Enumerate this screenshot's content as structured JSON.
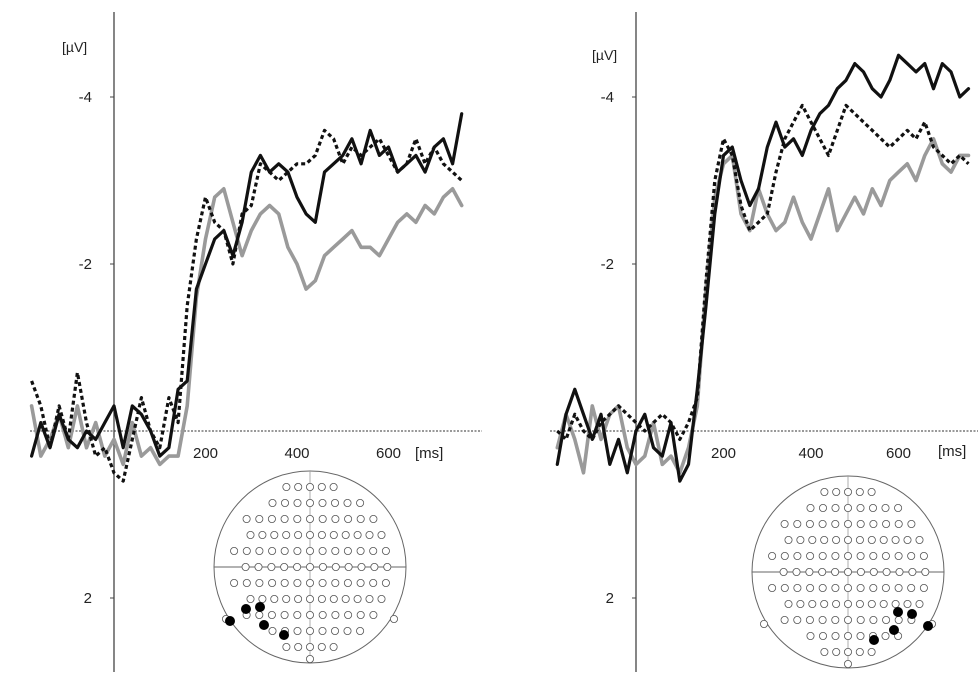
{
  "chart_data": [
    {
      "type": "line",
      "ylabel": "[µV]",
      "xlabel_unit": "[ms]",
      "x_ticks": [
        200,
        400,
        600
      ],
      "y_ticks": [
        -4,
        -2,
        2
      ],
      "xlim": [
        -180,
        780
      ],
      "ylim": [
        -5,
        3
      ],
      "y_inverted": true,
      "series": [
        {
          "style": "solid-black",
          "x": [
            -180,
            -160,
            -140,
            -120,
            -100,
            -80,
            -60,
            -40,
            -20,
            0,
            20,
            40,
            60,
            80,
            100,
            120,
            140,
            160,
            180,
            200,
            220,
            240,
            260,
            280,
            300,
            320,
            340,
            360,
            380,
            400,
            420,
            440,
            460,
            480,
            500,
            520,
            540,
            560,
            580,
            600,
            620,
            640,
            660,
            680,
            700,
            720,
            740,
            760
          ],
          "y": [
            0.3,
            -0.1,
            0.2,
            -0.2,
            0.1,
            0.2,
            0.0,
            0.1,
            -0.1,
            -0.3,
            0.2,
            -0.3,
            -0.2,
            0.0,
            0.3,
            0.2,
            -0.5,
            -0.6,
            -1.7,
            -2.0,
            -2.3,
            -2.4,
            -2.1,
            -2.5,
            -3.1,
            -3.3,
            -3.1,
            -3.2,
            -3.1,
            -2.8,
            -2.6,
            -2.5,
            -3.1,
            -3.2,
            -3.3,
            -3.5,
            -3.2,
            -3.6,
            -3.3,
            -3.4,
            -3.1,
            -3.2,
            -3.3,
            -3.1,
            -3.4,
            -3.5,
            -3.2,
            -3.8
          ]
        },
        {
          "style": "dotted-black",
          "x": [
            -180,
            -160,
            -140,
            -120,
            -100,
            -80,
            -60,
            -40,
            -20,
            0,
            20,
            40,
            60,
            80,
            100,
            120,
            140,
            160,
            180,
            200,
            220,
            240,
            260,
            280,
            300,
            320,
            340,
            360,
            380,
            400,
            420,
            440,
            460,
            480,
            500,
            520,
            540,
            560,
            580,
            600,
            620,
            640,
            660,
            680,
            700,
            720,
            740,
            760
          ],
          "y": [
            -0.6,
            -0.3,
            0.2,
            -0.3,
            0.1,
            -0.7,
            -0.1,
            0.3,
            0.2,
            0.5,
            0.6,
            0.1,
            -0.4,
            0.0,
            0.2,
            -0.4,
            -0.1,
            -1.5,
            -2.3,
            -2.8,
            -2.5,
            -2.4,
            -2.0,
            -2.6,
            -2.7,
            -3.2,
            -3.1,
            -3.0,
            -3.1,
            -3.2,
            -3.2,
            -3.3,
            -3.6,
            -3.5,
            -3.2,
            -3.4,
            -3.3,
            -3.4,
            -3.5,
            -3.3,
            -3.1,
            -3.2,
            -3.5,
            -3.2,
            -3.4,
            -3.2,
            -3.1,
            -3.0
          ]
        },
        {
          "style": "solid-gray",
          "x": [
            -180,
            -160,
            -140,
            -120,
            -100,
            -80,
            -60,
            -40,
            -20,
            0,
            20,
            40,
            60,
            80,
            100,
            120,
            140,
            160,
            180,
            200,
            220,
            240,
            260,
            280,
            300,
            320,
            340,
            360,
            380,
            400,
            420,
            440,
            460,
            480,
            500,
            520,
            540,
            560,
            580,
            600,
            620,
            640,
            660,
            680,
            700,
            720,
            740,
            760
          ],
          "y": [
            -0.3,
            0.3,
            0.1,
            -0.2,
            0.2,
            -0.3,
            0.2,
            -0.1,
            0.3,
            0.1,
            0.4,
            -0.1,
            0.3,
            0.2,
            0.4,
            0.3,
            0.3,
            -0.3,
            -1.6,
            -2.3,
            -2.8,
            -2.9,
            -2.5,
            -2.1,
            -2.4,
            -2.6,
            -2.7,
            -2.6,
            -2.2,
            -2.0,
            -1.7,
            -1.8,
            -2.1,
            -2.2,
            -2.3,
            -2.4,
            -2.2,
            -2.2,
            -2.1,
            -2.3,
            -2.5,
            -2.6,
            -2.5,
            -2.7,
            -2.6,
            -2.8,
            -2.9,
            -2.7
          ]
        }
      ],
      "electrode_map": {
        "highlight": "left-posterior"
      }
    },
    {
      "type": "line",
      "ylabel": "[µV]",
      "xlabel_unit": "[ms]",
      "x_ticks": [
        200,
        400,
        600
      ],
      "y_ticks": [
        -4,
        -2,
        2
      ],
      "xlim": [
        -180,
        780
      ],
      "ylim": [
        -5,
        3
      ],
      "y_inverted": true,
      "series": [
        {
          "style": "solid-black",
          "x": [
            -180,
            -160,
            -140,
            -120,
            -100,
            -80,
            -60,
            -40,
            -20,
            0,
            20,
            40,
            60,
            80,
            100,
            120,
            140,
            160,
            180,
            200,
            220,
            240,
            260,
            280,
            300,
            320,
            340,
            360,
            380,
            400,
            420,
            440,
            460,
            480,
            500,
            520,
            540,
            560,
            580,
            600,
            620,
            640,
            660,
            680,
            700,
            720,
            740,
            760
          ],
          "y": [
            0.4,
            -0.2,
            -0.5,
            -0.2,
            0.1,
            -0.2,
            0.4,
            0.1,
            0.5,
            0.0,
            -0.2,
            0.2,
            0.3,
            -0.1,
            0.6,
            0.4,
            -0.5,
            -1.5,
            -2.6,
            -3.3,
            -3.4,
            -3.0,
            -2.7,
            -2.9,
            -3.4,
            -3.7,
            -3.4,
            -3.5,
            -3.3,
            -3.6,
            -3.8,
            -3.9,
            -4.1,
            -4.2,
            -4.4,
            -4.3,
            -4.1,
            -4.0,
            -4.2,
            -4.5,
            -4.4,
            -4.3,
            -4.4,
            -4.1,
            -4.4,
            -4.3,
            -4.0,
            -4.1
          ]
        },
        {
          "style": "dotted-black",
          "x": [
            -180,
            -160,
            -140,
            -120,
            -100,
            -80,
            -60,
            -40,
            -20,
            0,
            20,
            40,
            60,
            80,
            100,
            120,
            140,
            160,
            180,
            200,
            220,
            240,
            260,
            280,
            300,
            320,
            340,
            360,
            380,
            400,
            420,
            440,
            460,
            480,
            500,
            520,
            540,
            560,
            580,
            600,
            620,
            640,
            660,
            680,
            700,
            720,
            740,
            760
          ],
          "y": [
            0.0,
            0.1,
            -0.2,
            0.0,
            0.1,
            -0.1,
            -0.2,
            -0.3,
            -0.2,
            -0.1,
            0.0,
            -0.1,
            -0.2,
            -0.1,
            0.1,
            -0.1,
            -0.4,
            -1.8,
            -3.0,
            -3.5,
            -3.3,
            -2.7,
            -2.4,
            -2.5,
            -2.6,
            -3.1,
            -3.5,
            -3.7,
            -3.9,
            -3.7,
            -3.5,
            -3.3,
            -3.6,
            -3.9,
            -3.8,
            -3.7,
            -3.6,
            -3.5,
            -3.4,
            -3.5,
            -3.6,
            -3.5,
            -3.7,
            -3.4,
            -3.3,
            -3.2,
            -3.3,
            -3.2
          ]
        },
        {
          "style": "solid-gray",
          "x": [
            -180,
            -160,
            -140,
            -120,
            -100,
            -80,
            -60,
            -40,
            -20,
            0,
            20,
            40,
            60,
            80,
            100,
            120,
            140,
            160,
            180,
            200,
            220,
            240,
            260,
            280,
            300,
            320,
            340,
            360,
            380,
            400,
            420,
            440,
            460,
            480,
            500,
            520,
            540,
            560,
            580,
            600,
            620,
            640,
            660,
            680,
            700,
            720,
            740,
            760
          ],
          "y": [
            0.2,
            -0.2,
            0.1,
            0.5,
            -0.3,
            0.1,
            -0.2,
            -0.3,
            0.2,
            0.4,
            0.3,
            -0.1,
            0.4,
            0.3,
            0.5,
            0.2,
            -0.3,
            -1.7,
            -2.8,
            -3.2,
            -3.3,
            -2.6,
            -2.4,
            -2.9,
            -2.6,
            -2.4,
            -2.5,
            -2.8,
            -2.5,
            -2.3,
            -2.6,
            -2.9,
            -2.4,
            -2.6,
            -2.8,
            -2.6,
            -2.9,
            -2.7,
            -3.0,
            -3.1,
            -3.2,
            -3.0,
            -3.3,
            -3.5,
            -3.2,
            -3.1,
            -3.3,
            -3.3
          ]
        }
      ],
      "electrode_map": {
        "highlight": "right-posterior"
      }
    }
  ],
  "colors": {
    "solid-black": "#111111",
    "dotted-black": "#111111",
    "solid-gray": "#9a9a9a",
    "axis": "#444444"
  }
}
